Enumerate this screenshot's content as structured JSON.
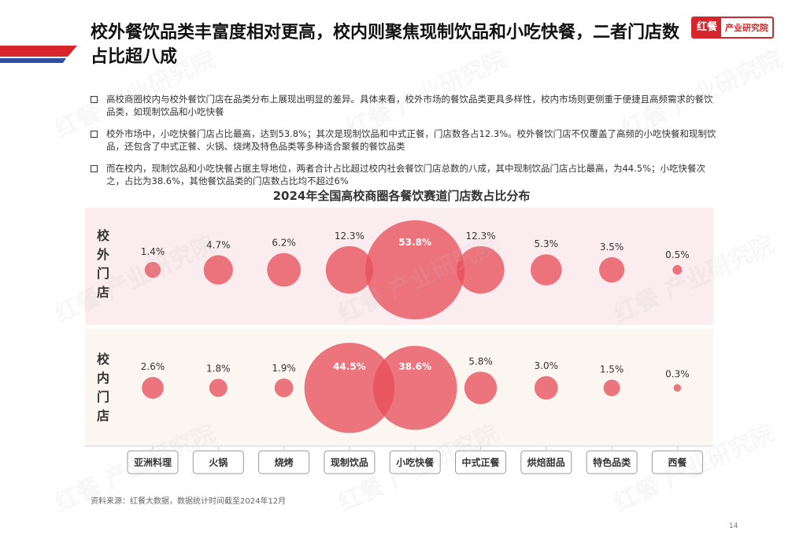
{
  "title": "校外餐饮品类丰富度相对更高，校内则聚焦现制饮品和小吃快餐，二者门店数占比超八成",
  "logo": {
    "mark": "红餐",
    "text": "产业研究院"
  },
  "watermark": "红餐 产业研究院",
  "bullets": [
    "高校商圈校内与校外餐饮门店在品类分布上展现出明显的差异。具体来看，校外市场的餐饮品类更具多样性，校内市场则更侧重于便捷且高频需求的餐饮品类，如现制饮品和小吃快餐",
    "校外市场中，小吃快餐门店占比最高，达到53.8%；其次是现制饮品和中式正餐，门店数各占12.3%。校外餐饮门店不仅覆盖了高频的小吃快餐和现制饮品，还包含了中式正餐、火锅、烧烤及特色品类等多种适合聚餐的餐饮品类",
    "而在校内，现制饮品和小吃快餐占据主导地位，两者合计占比超过校内社会餐饮门店总数的八成，其中现制饮品门店占比最高，为44.5%；小吃快餐次之，占比为38.6%，其他餐饮品类的门店数占比均不超过6%"
  ],
  "chart_data": {
    "type": "bubble",
    "title": "2024年全国高校商圈各餐饮赛道门店数占比分布",
    "categories": [
      "亚洲料理",
      "火锅",
      "烧烤",
      "现制饮品",
      "小吃快餐",
      "中式正餐",
      "烘焙甜品",
      "特色品类",
      "西餐"
    ],
    "series": [
      {
        "name": "校外门店",
        "values": [
          1.4,
          4.7,
          6.2,
          12.3,
          53.8,
          12.3,
          5.3,
          3.5,
          0.5
        ],
        "labels": [
          "1.4%",
          "4.7%",
          "6.2%",
          "12.3%",
          "53.8%",
          "12.3%",
          "5.3%",
          "3.5%",
          "0.5%"
        ],
        "band_color": "#fbecef"
      },
      {
        "name": "校内门店",
        "values": [
          2.6,
          1.8,
          1.9,
          44.5,
          38.6,
          5.8,
          3.0,
          1.5,
          0.3
        ],
        "labels": [
          "2.6%",
          "1.8%",
          "1.9%",
          "44.5%",
          "38.6%",
          "5.8%",
          "3.0%",
          "1.5%",
          "0.3%"
        ],
        "band_color": "#fbf6ef"
      }
    ],
    "colors": {
      "bubble": "#e8505b",
      "inner_label": "#ffffff",
      "outer_label": "#333333"
    }
  },
  "source": "资料来源：红餐大数据，数据统计时间截至2024年12月",
  "page_number": "14"
}
